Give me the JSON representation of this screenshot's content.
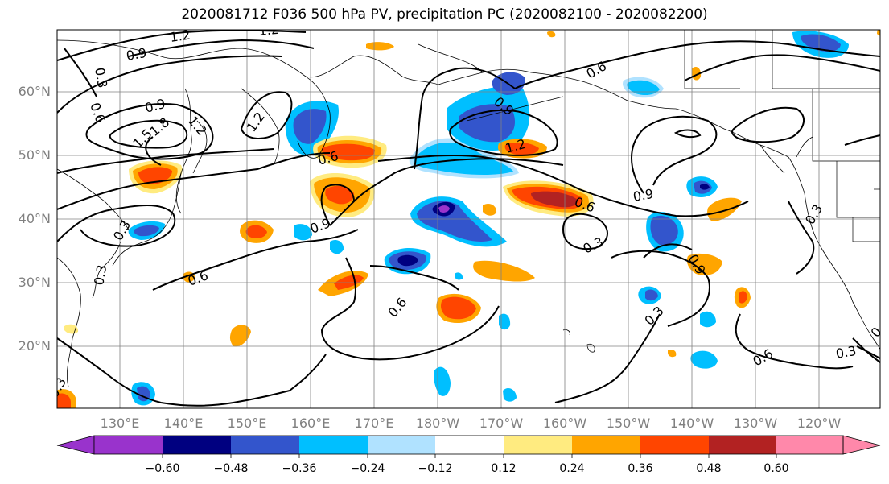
{
  "title": "2020081712 F036 500 hPa PV, precipitation PC (2020082100 - 2020082200)",
  "latitude_labels": [
    "60°N",
    "50°N",
    "40°N",
    "30°N",
    "20°N"
  ],
  "longitude_labels": [
    "130°E",
    "140°E",
    "150°E",
    "160°E",
    "170°E",
    "180°W",
    "170°W",
    "160°W",
    "150°W",
    "140°W",
    "130°W",
    "120°W"
  ],
  "contour_labels": [
    "1.2",
    "1.2",
    "0.9",
    "0.6",
    "0.9",
    "1.5",
    "1.8",
    "1.2",
    "1.2",
    "0.9",
    "0.6",
    "1.2",
    "0.6",
    "0.9",
    "0.9",
    "0.3",
    "0.3",
    "0.6",
    "0.6",
    "0.6",
    "0.3",
    "0.9",
    "0.3",
    "0.6",
    "0.3",
    "0.3",
    "0.6",
    "0.3",
    "0.3"
  ],
  "colorbar": {
    "ticks": [
      "−0.60",
      "−0.48",
      "−0.36",
      "−0.24",
      "−0.12",
      "0.12",
      "0.24",
      "0.36",
      "0.48",
      "0.60"
    ],
    "colors": [
      "#9933cc",
      "#000080",
      "#3355cc",
      "#00bfff",
      "#b0e2ff",
      "#ffffff",
      "#ffeb80",
      "#ffa500",
      "#ff4500",
      "#b22222",
      "#ff88aa"
    ]
  },
  "map_colors": {
    "neg_weak": "#b0e2ff",
    "neg_mid": "#00bfff",
    "neg_strong": "#3355cc",
    "neg_max": "#000080",
    "neg_ext": "#9933cc",
    "pos_weak": "#ffeb80",
    "pos_mid": "#ffa500",
    "pos_strong": "#ff4500",
    "pos_max": "#b22222"
  }
}
